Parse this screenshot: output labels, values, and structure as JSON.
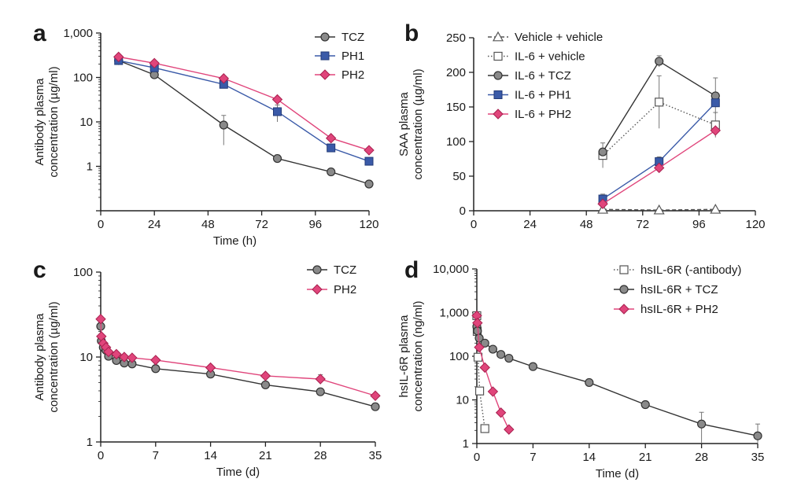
{
  "colors": {
    "tcz": "#8a8a8a",
    "ph1": "#3a5aa8",
    "ph2": "#e0457b",
    "axis": "#222222",
    "vehicle": "#777777"
  },
  "chart_data": [
    {
      "panel": "a",
      "type": "line",
      "yscale": "log",
      "xlabel": "Time (h)",
      "ylabel": [
        "Antibody plasma",
        "concentration (µg/ml)"
      ],
      "xlim": [
        0,
        120
      ],
      "ylim": [
        0.1,
        1000
      ],
      "xticks": [
        0,
        24,
        48,
        72,
        96,
        120
      ],
      "xtick_labels": [
        "0",
        "24",
        "48",
        "72",
        "96",
        "120"
      ],
      "yticks": [
        0.1,
        1,
        10,
        100,
        1000
      ],
      "ytick_labels": [
        "",
        "1",
        "10",
        "100",
        "1,000"
      ],
      "legend": "top-right",
      "series": [
        {
          "name": "TCZ",
          "marker": "circle",
          "color": "#8a8a8a",
          "line": "solid",
          "x": [
            8,
            24,
            55,
            79,
            103,
            120
          ],
          "y": [
            240,
            115,
            8.5,
            1.5,
            0.75,
            0.4
          ],
          "err": [
            0,
            0,
            5.5,
            0.3,
            0,
            0
          ]
        },
        {
          "name": "PH1",
          "marker": "square",
          "color": "#3a5aa8",
          "line": "solid",
          "x": [
            8,
            24,
            55,
            79,
            103,
            120
          ],
          "y": [
            240,
            165,
            70,
            17,
            2.6,
            1.3
          ],
          "err": [
            0,
            0,
            12,
            7,
            0.5,
            0
          ]
        },
        {
          "name": "PH2",
          "marker": "diamond",
          "color": "#e0457b",
          "line": "solid",
          "x": [
            8,
            24,
            55,
            79,
            103,
            120
          ],
          "y": [
            290,
            210,
            95,
            32,
            4.3,
            2.3
          ],
          "err": [
            0,
            0,
            0,
            0,
            0,
            0
          ]
        }
      ]
    },
    {
      "panel": "b",
      "type": "line",
      "yscale": "linear",
      "xlabel": "",
      "ylabel": [
        "SAA plasma",
        "concentration (µg/ml)"
      ],
      "xlim": [
        0,
        120
      ],
      "ylim": [
        0,
        250
      ],
      "xticks": [
        0,
        24,
        48,
        72,
        96,
        120
      ],
      "xtick_labels": [
        "0",
        "24",
        "48",
        "72",
        "96",
        "120"
      ],
      "yticks": [
        0,
        50,
        100,
        150,
        200,
        250
      ],
      "ytick_labels": [
        "0",
        "50",
        "100",
        "150",
        "200",
        "250"
      ],
      "legend": "top-left",
      "series": [
        {
          "name": "Vehicle + vehicle",
          "marker": "triangle-open",
          "color": "#777777",
          "line": "dashed",
          "x": [
            55,
            79,
            103
          ],
          "y": [
            2,
            1,
            2
          ],
          "err": [
            0,
            0,
            0
          ]
        },
        {
          "name": "IL-6 + vehicle",
          "marker": "square-open",
          "color": "#777777",
          "line": "dotted",
          "x": [
            55,
            79,
            103
          ],
          "y": [
            80,
            157,
            124
          ],
          "err": [
            18,
            38,
            18
          ]
        },
        {
          "name": "IL-6 + TCZ",
          "marker": "circle",
          "color": "#8a8a8a",
          "line": "solid",
          "x": [
            55,
            79,
            103
          ],
          "y": [
            85,
            216,
            166
          ],
          "err": [
            0,
            8,
            26
          ]
        },
        {
          "name": "IL-6 + PH1",
          "marker": "square",
          "color": "#3a5aa8",
          "line": "solid",
          "x": [
            55,
            79,
            103
          ],
          "y": [
            17,
            71,
            156
          ],
          "err": [
            7,
            7,
            0
          ]
        },
        {
          "name": "IL-6 + PH2",
          "marker": "diamond",
          "color": "#e0457b",
          "line": "solid",
          "x": [
            55,
            79,
            103
          ],
          "y": [
            10,
            62,
            116
          ],
          "err": [
            0,
            0,
            0
          ]
        }
      ]
    },
    {
      "panel": "c",
      "type": "line",
      "yscale": "log",
      "xlabel": "Time (d)",
      "ylabel": [
        "Antibody plasma",
        "concentration (µg/ml)"
      ],
      "xlim": [
        0,
        35
      ],
      "ylim": [
        1,
        100
      ],
      "xticks": [
        0,
        7,
        14,
        21,
        28,
        35
      ],
      "xtick_labels": [
        "0",
        "7",
        "14",
        "21",
        "28",
        "35"
      ],
      "yticks": [
        1,
        10,
        100
      ],
      "ytick_labels": [
        "1",
        "10",
        "100"
      ],
      "legend": "top-right",
      "series": [
        {
          "name": "TCZ",
          "marker": "circle",
          "color": "#8a8a8a",
          "line": "solid",
          "x": [
            0,
            0.08,
            0.33,
            0.67,
            1,
            2,
            3,
            4,
            7,
            14,
            21,
            28,
            35
          ],
          "y": [
            23,
            15.5,
            13,
            12,
            10.2,
            9.1,
            8.5,
            8.3,
            7.3,
            6.3,
            4.7,
            3.9,
            2.6
          ],
          "err": [
            0,
            0,
            0,
            0,
            0,
            0,
            0,
            0,
            0,
            0,
            0,
            0,
            0
          ]
        },
        {
          "name": "PH2",
          "marker": "diamond",
          "color": "#e0457b",
          "line": "solid",
          "x": [
            0,
            0.08,
            0.33,
            0.67,
            1,
            2,
            3,
            4,
            7,
            14,
            21,
            28,
            35
          ],
          "y": [
            28,
            17.5,
            14.5,
            13,
            11.5,
            10.8,
            10,
            9.8,
            9.2,
            7.5,
            6,
            5.5,
            3.5
          ],
          "err": [
            0,
            0,
            0,
            0,
            0,
            0,
            0,
            0,
            0,
            0,
            0,
            0.7,
            0
          ]
        }
      ]
    },
    {
      "panel": "d",
      "type": "line",
      "yscale": "log",
      "xlabel": "Time (d)",
      "ylabel": [
        "hsIL-6R plasma",
        "concentration (ng/ml)"
      ],
      "xlim": [
        0,
        35
      ],
      "ylim": [
        1,
        10000
      ],
      "xticks": [
        0,
        7,
        14,
        21,
        28,
        35
      ],
      "xtick_labels": [
        "0",
        "7",
        "14",
        "21",
        "28",
        "35"
      ],
      "yticks": [
        1,
        10,
        100,
        1000,
        10000
      ],
      "ytick_labels": [
        "1",
        "10",
        "100",
        "1,000",
        "10,000"
      ],
      "legend": "top-right",
      "series": [
        {
          "name": "hsIL-6R (-antibody)",
          "marker": "square-open",
          "color": "#777777",
          "line": "dotted",
          "x": [
            0,
            0.05,
            0.15,
            0.35,
            1
          ],
          "y": [
            850,
            370,
            95,
            16,
            2.2
          ],
          "err": [
            0,
            0,
            0,
            0,
            0
          ]
        },
        {
          "name": "hsIL-6R + TCZ",
          "marker": "circle",
          "color": "#8a8a8a",
          "line": "solid",
          "x": [
            0,
            0.08,
            0.3,
            1,
            2,
            3,
            4,
            7,
            14,
            21,
            28,
            35
          ],
          "y": [
            480,
            380,
            260,
            200,
            145,
            110,
            90,
            58,
            25,
            7.8,
            2.8,
            1.5
          ],
          "err": [
            0,
            0,
            0,
            0,
            0,
            0,
            0,
            0,
            0,
            0,
            2.4,
            1.3
          ]
        },
        {
          "name": "hsIL-6R + PH2",
          "marker": "diamond",
          "color": "#e0457b",
          "line": "solid",
          "x": [
            0,
            0.08,
            0.3,
            1,
            2,
            3,
            4
          ],
          "y": [
            850,
            580,
            160,
            55,
            15.5,
            5.1,
            2.1
          ],
          "err": [
            0,
            0,
            0,
            0,
            0,
            0,
            0
          ]
        }
      ]
    }
  ],
  "panel_labels": [
    "a",
    "b",
    "c",
    "d"
  ]
}
